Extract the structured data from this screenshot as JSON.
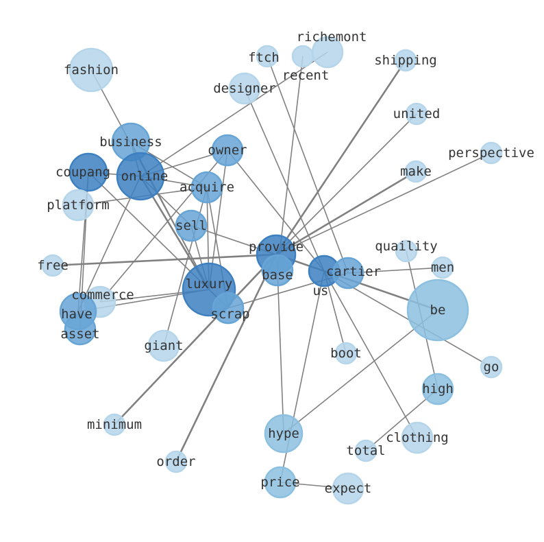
{
  "palette": {
    "edge": "#808080",
    "light": "#b5d5ea",
    "mid": "#8cc0e0",
    "medium": "#67a5d6",
    "dark": "#3d80c1",
    "label": "#333333"
  },
  "nodes": [
    {
      "id": "fashion",
      "tone": "light"
    },
    {
      "id": "ftch",
      "tone": "light"
    },
    {
      "id": "recent",
      "tone": "light"
    },
    {
      "id": "richemont",
      "tone": "light"
    },
    {
      "id": "shipping",
      "tone": "light"
    },
    {
      "id": "designer",
      "tone": "light"
    },
    {
      "id": "united",
      "tone": "light"
    },
    {
      "id": "perspective",
      "tone": "light"
    },
    {
      "id": "make",
      "tone": "light"
    },
    {
      "id": "business",
      "tone": "medium"
    },
    {
      "id": "owner",
      "tone": "medium"
    },
    {
      "id": "coupang",
      "tone": "dark"
    },
    {
      "id": "online",
      "tone": "dark"
    },
    {
      "id": "acquire",
      "tone": "medium"
    },
    {
      "id": "platform",
      "tone": "light"
    },
    {
      "id": "sell",
      "tone": "medium"
    },
    {
      "id": "free",
      "tone": "light"
    },
    {
      "id": "provide",
      "tone": "dark"
    },
    {
      "id": "base",
      "tone": "medium"
    },
    {
      "id": "quaility",
      "tone": "light"
    },
    {
      "id": "men",
      "tone": "light"
    },
    {
      "id": "us",
      "tone": "dark"
    },
    {
      "id": "cartier",
      "tone": "medium"
    },
    {
      "id": "be",
      "tone": "mid"
    },
    {
      "id": "luxury",
      "tone": "dark"
    },
    {
      "id": "commerce",
      "tone": "light"
    },
    {
      "id": "have",
      "tone": "medium"
    },
    {
      "id": "scrap",
      "tone": "medium"
    },
    {
      "id": "asset",
      "tone": "medium"
    },
    {
      "id": "giant",
      "tone": "light"
    },
    {
      "id": "boot",
      "tone": "light"
    },
    {
      "id": "go",
      "tone": "light"
    },
    {
      "id": "high",
      "tone": "mid"
    },
    {
      "id": "minimum",
      "tone": "light"
    },
    {
      "id": "hype",
      "tone": "mid"
    },
    {
      "id": "clothing",
      "tone": "light"
    },
    {
      "id": "total",
      "tone": "light"
    },
    {
      "id": "order",
      "tone": "light"
    },
    {
      "id": "price",
      "tone": "mid"
    },
    {
      "id": "expect",
      "tone": "light"
    }
  ],
  "edges": [
    [
      "fashion",
      "luxury",
      1
    ],
    [
      "richemont",
      "online",
      1
    ],
    [
      "recent",
      "base",
      1
    ],
    [
      "ftch",
      "cartier",
      1
    ],
    [
      "shipping",
      "provide",
      2
    ],
    [
      "order",
      "provide",
      2
    ],
    [
      "minimum",
      "provide",
      2
    ],
    [
      "designer",
      "us",
      1
    ],
    [
      "united",
      "provide",
      1
    ],
    [
      "perspective",
      "provide",
      1
    ],
    [
      "make",
      "provide",
      2
    ],
    [
      "free",
      "provide",
      2
    ],
    [
      "business",
      "luxury",
      1
    ],
    [
      "business",
      "online",
      1
    ],
    [
      "business",
      "acquire",
      1
    ],
    [
      "owner",
      "online",
      1
    ],
    [
      "owner",
      "us",
      1
    ],
    [
      "owner",
      "commerce",
      1
    ],
    [
      "coupang",
      "luxury",
      1
    ],
    [
      "coupang",
      "have",
      1
    ],
    [
      "coupang",
      "asset",
      1
    ],
    [
      "coupang",
      "online",
      1
    ],
    [
      "online",
      "luxury",
      2
    ],
    [
      "online",
      "have",
      1
    ],
    [
      "online",
      "sell",
      1
    ],
    [
      "online",
      "acquire",
      1
    ],
    [
      "acquire",
      "luxury",
      1
    ],
    [
      "acquire",
      "scrap",
      1
    ],
    [
      "acquire",
      "platform",
      1
    ],
    [
      "sell",
      "provide",
      1
    ],
    [
      "sell",
      "luxury",
      1
    ],
    [
      "luxury",
      "have",
      1
    ],
    [
      "luxury",
      "commerce",
      1
    ],
    [
      "giant",
      "acquire",
      1
    ],
    [
      "provide",
      "be",
      2
    ],
    [
      "provide",
      "base",
      1
    ],
    [
      "scrap",
      "cartier",
      1
    ],
    [
      "us",
      "be",
      1
    ],
    [
      "us",
      "boot",
      1
    ],
    [
      "us",
      "go",
      1
    ],
    [
      "us",
      "clothing",
      1
    ],
    [
      "hype",
      "base",
      1
    ],
    [
      "hype",
      "be",
      1
    ],
    [
      "price",
      "us",
      1
    ],
    [
      "price",
      "expect",
      1
    ],
    [
      "high",
      "quaility",
      1
    ],
    [
      "high",
      "total",
      1
    ],
    [
      "cartier",
      "men",
      1
    ],
    [
      "luxury",
      "scrap",
      1
    ],
    [
      "owner",
      "luxury",
      1
    ]
  ]
}
